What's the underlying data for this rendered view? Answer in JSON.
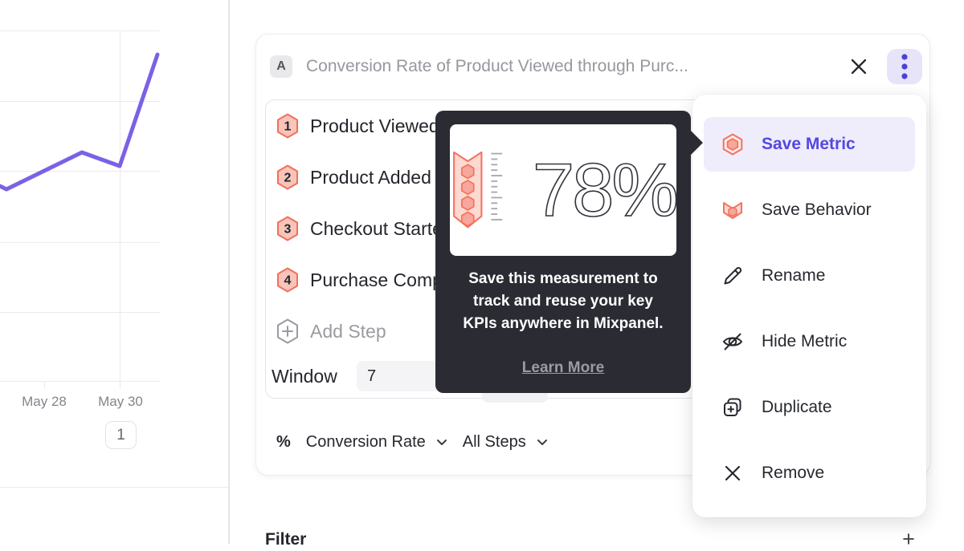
{
  "colors": {
    "accent_purple": "#5348e0",
    "line_purple": "#7b61e6",
    "coral": "#f3735e",
    "coral_light": "#fcd9d1",
    "coral_mid": "#f7a79b",
    "tooltip_bg": "#2b2b33",
    "menu_highlight_bg": "#efecfb",
    "kebab_bg": "#e7e4f9"
  },
  "chart": {
    "type": "line",
    "x_labels": [
      "May 28",
      "May 30"
    ],
    "pagination_label": "1",
    "line_points": [
      [
        0,
        232
      ],
      [
        8,
        236
      ],
      [
        102,
        190
      ],
      [
        149,
        207
      ],
      [
        196,
        68
      ]
    ]
  },
  "panel": {
    "series_badge": "A",
    "title": "Conversion Rate of Product Viewed through Purc...",
    "steps": [
      {
        "num": "1",
        "label": "Product Viewed"
      },
      {
        "num": "2",
        "label": "Product Added"
      },
      {
        "num": "3",
        "label": "Checkout Started"
      },
      {
        "num": "4",
        "label": "Purchase Completed"
      }
    ],
    "add_step_label": "Add Step",
    "window_label": "Window",
    "window_value": "7",
    "measurement": {
      "symbol": "%",
      "metric": "Conversion Rate",
      "scope": "All Steps"
    }
  },
  "tooltip": {
    "headline": "78%",
    "body": "Save this measurement to track and reuse your key KPIs anywhere in Mixpanel.",
    "link_label": "Learn More"
  },
  "menu": {
    "items": [
      {
        "label": "Save Metric"
      },
      {
        "label": "Save Behavior"
      },
      {
        "label": "Rename"
      },
      {
        "label": "Hide Metric"
      },
      {
        "label": "Duplicate"
      },
      {
        "label": "Remove"
      }
    ]
  },
  "footer": {
    "filter_label": "Filter",
    "add_filter_symbol": "+"
  }
}
